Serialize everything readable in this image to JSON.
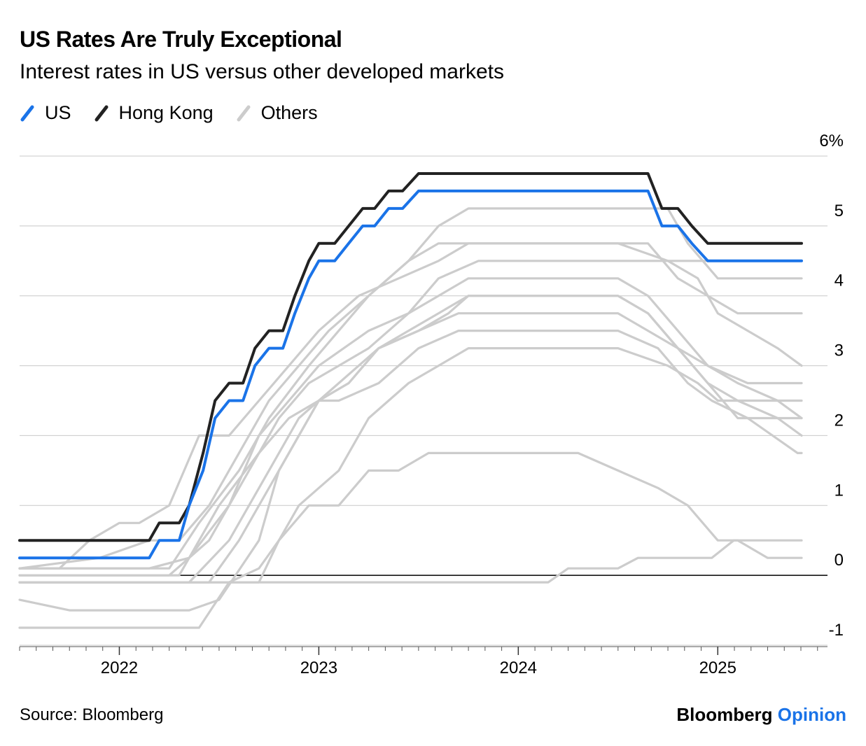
{
  "header": {
    "title": "US Rates Are Truly Exceptional",
    "subtitle": "Interest rates in US versus other developed markets"
  },
  "legend": [
    {
      "label": "US",
      "color": "#1a73e8"
    },
    {
      "label": "Hong Kong",
      "color": "#222222"
    },
    {
      "label": "Others",
      "color": "#cccccc"
    }
  ],
  "footer": {
    "source": "Source: Bloomberg",
    "brand": "Bloomberg",
    "brand_accent": "Opinion"
  },
  "chart_data": {
    "type": "line",
    "title": "US Rates Are Truly Exceptional",
    "subtitle": "Interest rates in US versus other developed markets",
    "xlabel": "",
    "ylabel": "",
    "xlim": [
      2021.5,
      2025.55
    ],
    "ylim": [
      -1,
      6
    ],
    "x_ticks": [
      2022,
      2023,
      2024,
      2025
    ],
    "x_tick_labels": [
      "2022",
      "2023",
      "2024",
      "2025"
    ],
    "y_ticks": [
      -1,
      0,
      1,
      2,
      3,
      4,
      5,
      6
    ],
    "y_tick_labels": [
      "-1",
      "0",
      "1",
      "2",
      "3",
      "4",
      "5",
      "6%"
    ],
    "grid": true,
    "legend_position": "top-left",
    "series": [
      {
        "name": "Others",
        "group": "others",
        "x": [
          2021.5,
          2021.85,
          2022.1,
          2022.25,
          2022.4,
          2022.6,
          2022.75,
          2022.95,
          2023.1,
          2023.25,
          2023.45,
          2023.6,
          2023.8,
          2024.25,
          2024.5,
          2024.75,
          2024.9,
          2025.0,
          2025.15,
          2025.3,
          2025.42
        ],
        "values": [
          0.1,
          0.1,
          0.1,
          0.1,
          0.75,
          1.5,
          2.25,
          3.0,
          3.5,
          4.0,
          4.5,
          4.75,
          4.75,
          4.75,
          4.75,
          4.5,
          4.25,
          3.75,
          3.5,
          3.25,
          3.0
        ]
      },
      {
        "name": "Others",
        "group": "others",
        "x": [
          2021.5,
          2021.9,
          2022.15,
          2022.3,
          2022.45,
          2022.6,
          2022.75,
          2022.9,
          2023.05,
          2023.25,
          2023.45,
          2023.6,
          2023.75,
          2024.3,
          2024.55,
          2024.75,
          2024.85,
          2025.0,
          2025.2,
          2025.42
        ],
        "values": [
          0.1,
          0.25,
          0.5,
          0.5,
          1.0,
          1.75,
          2.5,
          3.0,
          3.5,
          4.0,
          4.5,
          5.0,
          5.25,
          5.25,
          5.25,
          5.25,
          4.75,
          4.25,
          4.25,
          4.25
        ]
      },
      {
        "name": "Others",
        "group": "others",
        "x": [
          2021.5,
          2021.7,
          2021.85,
          2022.0,
          2022.1,
          2022.25,
          2022.4,
          2022.55,
          2022.7,
          2022.85,
          2023.0,
          2023.2,
          2023.4,
          2023.6,
          2023.75,
          2024.25,
          2024.5,
          2024.65,
          2024.8,
          2024.95,
          2025.1,
          2025.25,
          2025.42
        ],
        "values": [
          0.1,
          0.1,
          0.5,
          0.75,
          0.75,
          1.0,
          2.0,
          2.0,
          2.5,
          3.0,
          3.5,
          4.0,
          4.25,
          4.5,
          4.75,
          4.75,
          4.75,
          4.75,
          4.25,
          4.0,
          3.75,
          3.75,
          3.75
        ]
      },
      {
        "name": "Others",
        "group": "others",
        "x": [
          2021.5,
          2022.15,
          2022.35,
          2022.55,
          2022.7,
          2022.85,
          2023.0,
          2023.25,
          2023.45,
          2023.6,
          2023.8,
          2024.3,
          2024.5,
          2024.7,
          2024.85,
          2025.0,
          2025.2,
          2025.42
        ],
        "values": [
          0.1,
          0.1,
          0.25,
          1.0,
          2.0,
          2.5,
          3.0,
          3.5,
          3.75,
          4.25,
          4.5,
          4.5,
          4.5,
          4.5,
          4.5,
          4.5,
          4.5,
          4.5
        ]
      },
      {
        "name": "Others",
        "group": "others",
        "x": [
          2021.5,
          2022.25,
          2022.45,
          2022.65,
          2022.8,
          2022.95,
          2023.1,
          2023.25,
          2023.45,
          2023.6,
          2023.75,
          2024.3,
          2024.5,
          2024.65,
          2024.8,
          2024.95,
          2025.1,
          2025.3,
          2025.42
        ],
        "values": [
          0.0,
          0.0,
          0.5,
          1.5,
          2.25,
          2.75,
          3.0,
          3.25,
          3.75,
          4.0,
          4.25,
          4.25,
          4.25,
          4.0,
          3.5,
          3.0,
          2.75,
          2.5,
          2.25
        ]
      },
      {
        "name": "Others",
        "group": "others",
        "x": [
          2021.5,
          2022.3,
          2022.5,
          2022.7,
          2022.85,
          2023.0,
          2023.15,
          2023.3,
          2023.45,
          2023.6,
          2023.75,
          2024.3,
          2024.5,
          2024.65,
          2024.8,
          2024.95,
          2025.15,
          2025.42
        ],
        "values": [
          0.0,
          0.0,
          1.0,
          1.75,
          2.25,
          2.5,
          2.75,
          3.25,
          3.5,
          3.75,
          4.0,
          4.0,
          4.0,
          3.75,
          3.25,
          3.0,
          2.75,
          2.75
        ]
      },
      {
        "name": "Others",
        "group": "others",
        "x": [
          2021.5,
          2022.35,
          2022.55,
          2022.75,
          2022.9,
          2023.1,
          2023.3,
          2023.5,
          2023.7,
          2024.3,
          2024.5,
          2024.65,
          2024.8,
          2024.95,
          2025.1,
          2025.3,
          2025.42
        ],
        "values": [
          -0.1,
          -0.1,
          0.5,
          1.5,
          2.25,
          2.75,
          3.25,
          3.5,
          3.75,
          3.75,
          3.75,
          3.5,
          3.25,
          2.75,
          2.5,
          2.25,
          2.0
        ]
      },
      {
        "name": "Others",
        "group": "others",
        "x": [
          2021.5,
          2022.45,
          2022.6,
          2022.75,
          2022.85,
          2023.0,
          2023.15,
          2023.3,
          2023.5,
          2023.65,
          2023.75,
          2024.3,
          2024.5,
          2024.65,
          2024.8,
          2024.95,
          2025.1,
          2025.35,
          2025.42
        ],
        "values": [
          -0.1,
          -0.1,
          0.5,
          1.25,
          1.75,
          2.5,
          2.75,
          3.25,
          3.5,
          3.75,
          4.0,
          4.0,
          4.0,
          3.75,
          3.25,
          2.75,
          2.25,
          2.25,
          2.25
        ]
      },
      {
        "name": "Others",
        "group": "others",
        "x": [
          2021.5,
          2021.75,
          2022.35,
          2022.5,
          2022.7,
          2022.8,
          2022.9,
          2023.0,
          2023.1,
          2023.3,
          2023.5,
          2023.7,
          2024.3,
          2024.5,
          2024.7,
          2024.85,
          2024.97,
          2025.15,
          2025.4,
          2025.42
        ],
        "values": [
          -0.35,
          -0.5,
          -0.5,
          -0.35,
          0.5,
          1.5,
          2.0,
          2.5,
          2.5,
          2.75,
          3.25,
          3.5,
          3.5,
          3.5,
          3.25,
          2.75,
          2.5,
          2.25,
          1.75,
          1.75
        ]
      },
      {
        "name": "Others",
        "group": "others",
        "x": [
          2021.5,
          2022.4,
          2022.55,
          2022.7,
          2022.8,
          2022.9,
          2023.0,
          2023.1,
          2023.25,
          2023.45,
          2023.6,
          2023.75,
          2024.3,
          2024.5,
          2024.75,
          2024.9,
          2025.0,
          2025.15,
          2025.42
        ],
        "values": [
          -0.75,
          -0.75,
          -0.1,
          0.1,
          0.5,
          1.0,
          1.25,
          1.5,
          2.25,
          2.75,
          3.0,
          3.25,
          3.25,
          3.25,
          3.0,
          2.75,
          2.5,
          2.5,
          2.5
        ]
      },
      {
        "name": "Others",
        "group": "others",
        "x": [
          2021.5,
          2022.7,
          2022.8,
          2022.95,
          2023.1,
          2023.25,
          2023.4,
          2023.55,
          2023.7,
          2024.3,
          2024.5,
          2024.7,
          2024.85,
          2025.0,
          2025.1,
          2025.25,
          2025.42
        ],
        "values": [
          -0.1,
          -0.1,
          0.5,
          1.0,
          1.0,
          1.5,
          1.5,
          1.75,
          1.75,
          1.75,
          1.5,
          1.25,
          1.0,
          0.5,
          0.5,
          0.25,
          0.25
        ]
      },
      {
        "name": "Others",
        "group": "others",
        "x": [
          2021.5,
          2024.15,
          2024.25,
          2024.5,
          2024.6,
          2024.85,
          2024.97,
          2025.08,
          2025.42
        ],
        "values": [
          -0.1,
          -0.1,
          0.1,
          0.1,
          0.25,
          0.25,
          0.25,
          0.5,
          0.5
        ]
      },
      {
        "name": "Hong Kong",
        "group": "hk",
        "x": [
          2021.5,
          2022.15,
          2022.2,
          2022.3,
          2022.35,
          2022.42,
          2022.48,
          2022.55,
          2022.62,
          2022.68,
          2022.75,
          2022.82,
          2022.88,
          2022.95,
          2023.0,
          2023.08,
          2023.15,
          2023.22,
          2023.28,
          2023.35,
          2023.42,
          2023.5,
          2023.58,
          2023.65,
          2024.65,
          2024.72,
          2024.8,
          2024.87,
          2024.95,
          2025.0,
          2025.42
        ],
        "values": [
          0.5,
          0.5,
          0.75,
          0.75,
          1.0,
          1.75,
          2.5,
          2.75,
          2.75,
          3.25,
          3.5,
          3.5,
          4.0,
          4.5,
          4.75,
          4.75,
          5.0,
          5.25,
          5.25,
          5.5,
          5.5,
          5.75,
          5.75,
          5.75,
          5.75,
          5.25,
          5.25,
          5.0,
          4.75,
          4.75,
          4.75
        ]
      },
      {
        "name": "US",
        "group": "us",
        "x": [
          2021.5,
          2022.15,
          2022.2,
          2022.3,
          2022.35,
          2022.42,
          2022.48,
          2022.55,
          2022.62,
          2022.68,
          2022.75,
          2022.82,
          2022.88,
          2022.95,
          2023.0,
          2023.08,
          2023.15,
          2023.22,
          2023.28,
          2023.35,
          2023.42,
          2023.5,
          2023.58,
          2023.65,
          2024.65,
          2024.72,
          2024.8,
          2024.87,
          2024.95,
          2025.0,
          2025.42
        ],
        "values": [
          0.25,
          0.25,
          0.5,
          0.5,
          1.0,
          1.5,
          2.25,
          2.5,
          2.5,
          3.0,
          3.25,
          3.25,
          3.75,
          4.25,
          4.5,
          4.5,
          4.75,
          5.0,
          5.0,
          5.25,
          5.25,
          5.5,
          5.5,
          5.5,
          5.5,
          5.0,
          5.0,
          4.75,
          4.5,
          4.5,
          4.5
        ]
      }
    ]
  }
}
